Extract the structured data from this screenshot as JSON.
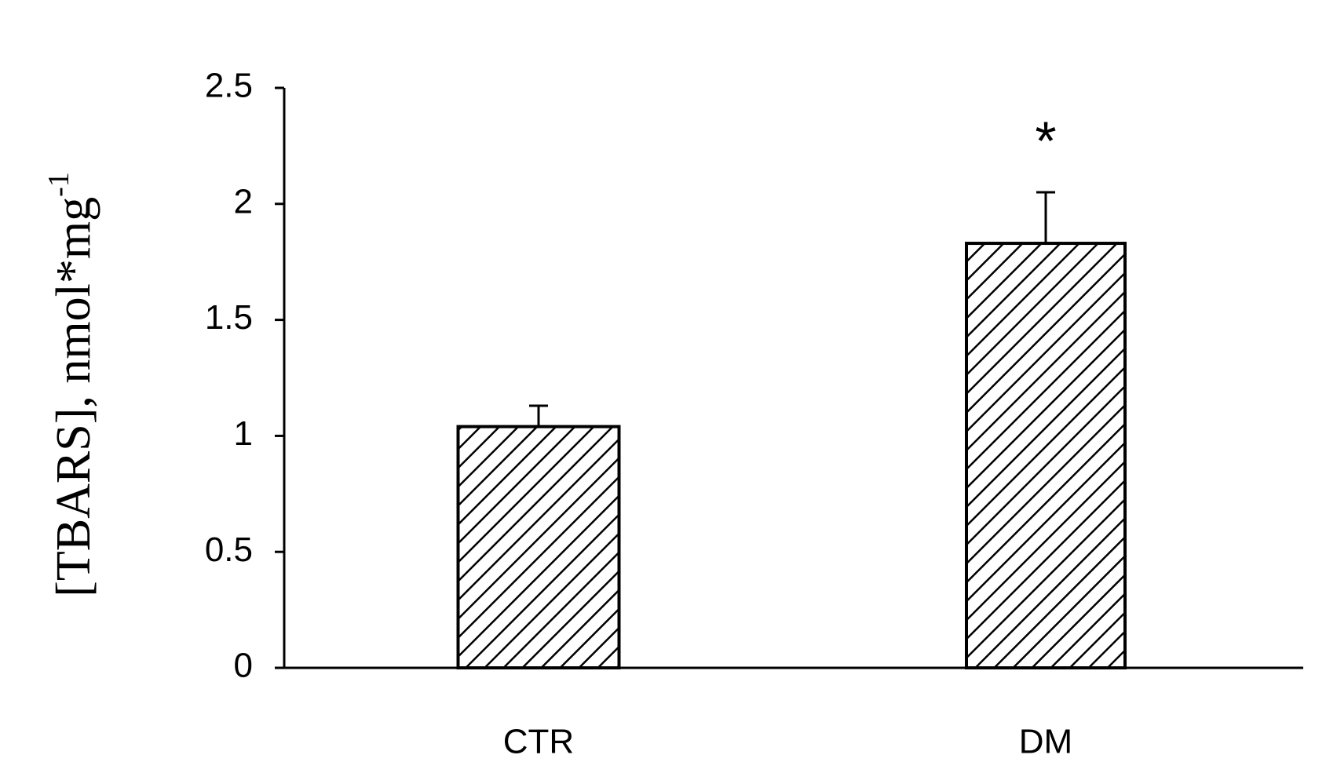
{
  "chart_data": {
    "type": "bar",
    "y_label": "[TBARS], nmol*mg",
    "y_label_sup": "-1",
    "categories": [
      "CTR",
      "DM"
    ],
    "values": [
      1.04,
      1.83
    ],
    "errors": [
      0.09,
      0.22
    ],
    "color": "#000000",
    "annotation": "*",
    "ylim": [
      0,
      2.5
    ],
    "yticks": [
      0,
      0.5,
      1,
      1.5,
      2,
      2.5
    ],
    "grid": false
  }
}
